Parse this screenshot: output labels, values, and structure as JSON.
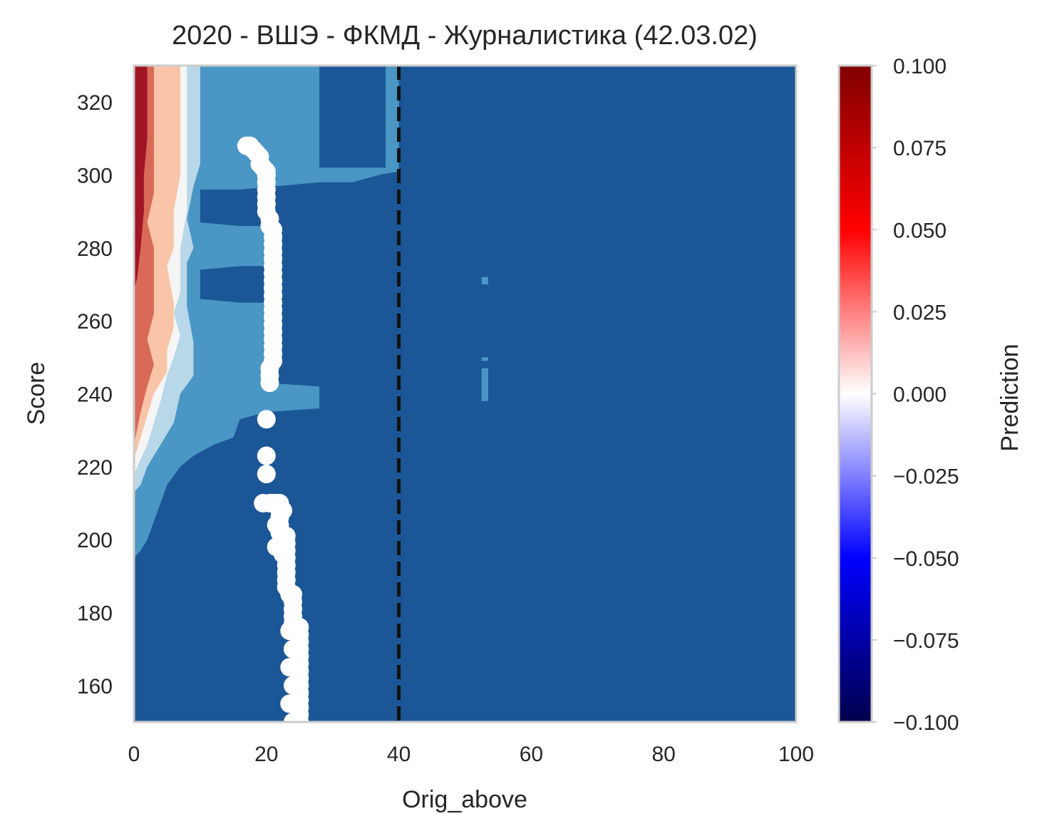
{
  "chart_data": {
    "type": "heatmap",
    "title": "2020 - ВШЭ - ФКМД - Журналистика (42.03.02)",
    "xlabel": "Orig_above",
    "ylabel": "Score",
    "xlim": [
      0,
      100
    ],
    "ylim": [
      150,
      330
    ],
    "x_ticks": [
      "0",
      "20",
      "40",
      "60",
      "80",
      "100"
    ],
    "y_ticks": [
      "160",
      "180",
      "200",
      "220",
      "240",
      "260",
      "280",
      "300",
      "320"
    ],
    "colorbar": {
      "label": "Prediction",
      "range": [
        -0.1,
        0.1
      ],
      "ticks": [
        "0.100",
        "0.075",
        "0.050",
        "0.025",
        "0.000",
        "−0.025",
        "−0.050",
        "−0.075",
        "−0.100"
      ],
      "colormap": "seismic"
    },
    "grid": false,
    "threshold_line": {
      "x": 40,
      "style": "dashed",
      "color": "#111111"
    },
    "contour_colors": {
      "background": "#1b5796",
      "mid_blue": "#4a96c4",
      "light_blue": "#b8d7e8",
      "white": "#f5f5f5",
      "light_red": "#f9c4a8",
      "mid_red": "#d96a58",
      "dark_red": "#a11526"
    },
    "regions": [
      {
        "level": "mid_blue",
        "points": [
          [
            0,
            195
          ],
          [
            0,
            330
          ],
          [
            28,
            330
          ],
          [
            28,
            302
          ],
          [
            38,
            302
          ],
          [
            38,
            330
          ],
          [
            40,
            330
          ],
          [
            40,
            301
          ],
          [
            37,
            300
          ],
          [
            33,
            298
          ],
          [
            28,
            298
          ],
          [
            22,
            297
          ],
          [
            16,
            296
          ],
          [
            10,
            296
          ],
          [
            10,
            287
          ],
          [
            16,
            286
          ],
          [
            20,
            286
          ],
          [
            20,
            275
          ],
          [
            16,
            275
          ],
          [
            10,
            274
          ],
          [
            10,
            266
          ],
          [
            16,
            265
          ],
          [
            20,
            265
          ],
          [
            20,
            243
          ],
          [
            28,
            242
          ],
          [
            28,
            236
          ],
          [
            20,
            235
          ],
          [
            16,
            233
          ],
          [
            15,
            228
          ],
          [
            12,
            226
          ],
          [
            9,
            223
          ],
          [
            7,
            220
          ],
          [
            5,
            215
          ],
          [
            4,
            210
          ],
          [
            3,
            205
          ],
          [
            2,
            200
          ],
          [
            1,
            197
          ]
        ]
      },
      {
        "level": "mid_blue",
        "points": [
          [
            52.5,
            272
          ],
          [
            53.5,
            272
          ],
          [
            53.5,
            270
          ],
          [
            52.5,
            270
          ]
        ]
      },
      {
        "level": "mid_blue",
        "points": [
          [
            52.5,
            250
          ],
          [
            53.5,
            250
          ],
          [
            53.5,
            249
          ],
          [
            52.5,
            249
          ]
        ]
      },
      {
        "level": "mid_blue",
        "points": [
          [
            52.5,
            247
          ],
          [
            53.5,
            247
          ],
          [
            53.5,
            238
          ],
          [
            52.5,
            238
          ]
        ]
      },
      {
        "level": "light_blue",
        "points": [
          [
            0,
            213
          ],
          [
            0,
            330
          ],
          [
            10,
            330
          ],
          [
            10,
            303
          ],
          [
            9,
            297
          ],
          [
            8,
            288
          ],
          [
            9,
            280
          ],
          [
            8,
            276
          ],
          [
            8,
            264
          ],
          [
            9,
            254
          ],
          [
            9,
            245
          ],
          [
            7,
            240
          ],
          [
            6,
            232
          ],
          [
            4,
            226
          ],
          [
            2,
            220
          ],
          [
            1,
            215
          ]
        ]
      },
      {
        "level": "white",
        "points": [
          [
            0,
            218
          ],
          [
            0,
            330
          ],
          [
            8,
            330
          ],
          [
            8,
            300
          ],
          [
            8,
            290
          ],
          [
            7,
            280
          ],
          [
            7,
            275
          ],
          [
            7,
            268
          ],
          [
            6,
            262
          ],
          [
            7,
            256
          ],
          [
            6,
            250
          ],
          [
            5,
            245
          ],
          [
            4,
            238
          ],
          [
            3,
            232
          ],
          [
            2,
            226
          ],
          [
            1,
            222
          ]
        ]
      },
      {
        "level": "light_red",
        "points": [
          [
            0,
            222
          ],
          [
            0,
            330
          ],
          [
            7,
            330
          ],
          [
            7,
            300
          ],
          [
            6,
            290
          ],
          [
            6,
            280
          ],
          [
            5,
            275
          ],
          [
            6,
            265
          ],
          [
            6,
            258
          ],
          [
            5,
            252
          ],
          [
            5,
            246
          ],
          [
            3,
            240
          ],
          [
            2,
            234
          ],
          [
            1,
            228
          ]
        ]
      },
      {
        "level": "mid_red",
        "points": [
          [
            0,
            226
          ],
          [
            0,
            330
          ],
          [
            3,
            330
          ],
          [
            3,
            305
          ],
          [
            3,
            295
          ],
          [
            2,
            287
          ],
          [
            3,
            280
          ],
          [
            3,
            270
          ],
          [
            3,
            262
          ],
          [
            2,
            255
          ],
          [
            3,
            248
          ],
          [
            2,
            242
          ],
          [
            1,
            235
          ]
        ]
      },
      {
        "level": "dark_red",
        "points": [
          [
            0,
            268
          ],
          [
            0,
            330
          ],
          [
            2,
            330
          ],
          [
            2,
            310
          ],
          [
            1.5,
            300
          ],
          [
            1.5,
            290
          ],
          [
            1,
            280
          ],
          [
            0.5,
            272
          ]
        ]
      }
    ],
    "scatter": {
      "color": "#ffffff",
      "points": [
        [
          17,
          308
        ],
        [
          17.5,
          308
        ],
        [
          18,
          307
        ],
        [
          18.5,
          306
        ],
        [
          19,
          305
        ],
        [
          19,
          303
        ],
        [
          19.5,
          302
        ],
        [
          20,
          301
        ],
        [
          20,
          300
        ],
        [
          20,
          298
        ],
        [
          20,
          296
        ],
        [
          20,
          294
        ],
        [
          20,
          292
        ],
        [
          20,
          290
        ],
        [
          20.5,
          288
        ],
        [
          20.5,
          286
        ],
        [
          21,
          285
        ],
        [
          21,
          283
        ],
        [
          21,
          281
        ],
        [
          21,
          279
        ],
        [
          21,
          277
        ],
        [
          21,
          275
        ],
        [
          21,
          273
        ],
        [
          21,
          271
        ],
        [
          21,
          269
        ],
        [
          21,
          267
        ],
        [
          21,
          265
        ],
        [
          21,
          263
        ],
        [
          21,
          261
        ],
        [
          21,
          259
        ],
        [
          21,
          257
        ],
        [
          21,
          255
        ],
        [
          21,
          253
        ],
        [
          21,
          251
        ],
        [
          21,
          249
        ],
        [
          20.5,
          247
        ],
        [
          20.5,
          245
        ],
        [
          20.5,
          243
        ],
        [
          20,
          233
        ],
        [
          20,
          223
        ],
        [
          20,
          218
        ],
        [
          19.5,
          210
        ],
        [
          20.5,
          210
        ],
        [
          21,
          210
        ],
        [
          21.5,
          210
        ],
        [
          22,
          210
        ],
        [
          22,
          208
        ],
        [
          22,
          206
        ],
        [
          22,
          204
        ],
        [
          22,
          202
        ],
        [
          22.5,
          201
        ],
        [
          23,
          201
        ],
        [
          23,
          199
        ],
        [
          23,
          197
        ],
        [
          23,
          195
        ],
        [
          23,
          193
        ],
        [
          23,
          191
        ],
        [
          23,
          189
        ],
        [
          23,
          187
        ],
        [
          23.5,
          185
        ],
        [
          24,
          185
        ],
        [
          24,
          183
        ],
        [
          24,
          181
        ],
        [
          24,
          179
        ],
        [
          24,
          177
        ],
        [
          24.5,
          176
        ],
        [
          25,
          176
        ],
        [
          25,
          174
        ],
        [
          25,
          172
        ],
        [
          25,
          170
        ],
        [
          25,
          168
        ],
        [
          25,
          166
        ],
        [
          25,
          164
        ],
        [
          25,
          162
        ],
        [
          25,
          160
        ],
        [
          25,
          158
        ],
        [
          25,
          156
        ],
        [
          25,
          154
        ],
        [
          25,
          152
        ],
        [
          25,
          150
        ],
        [
          23.5,
          175
        ],
        [
          23.5,
          165
        ],
        [
          23.5,
          155
        ],
        [
          24,
          170
        ],
        [
          24,
          160
        ],
        [
          24,
          150
        ],
        [
          22.5,
          208
        ],
        [
          22.5,
          196
        ],
        [
          21.5,
          204
        ],
        [
          21.5,
          198
        ]
      ]
    }
  }
}
